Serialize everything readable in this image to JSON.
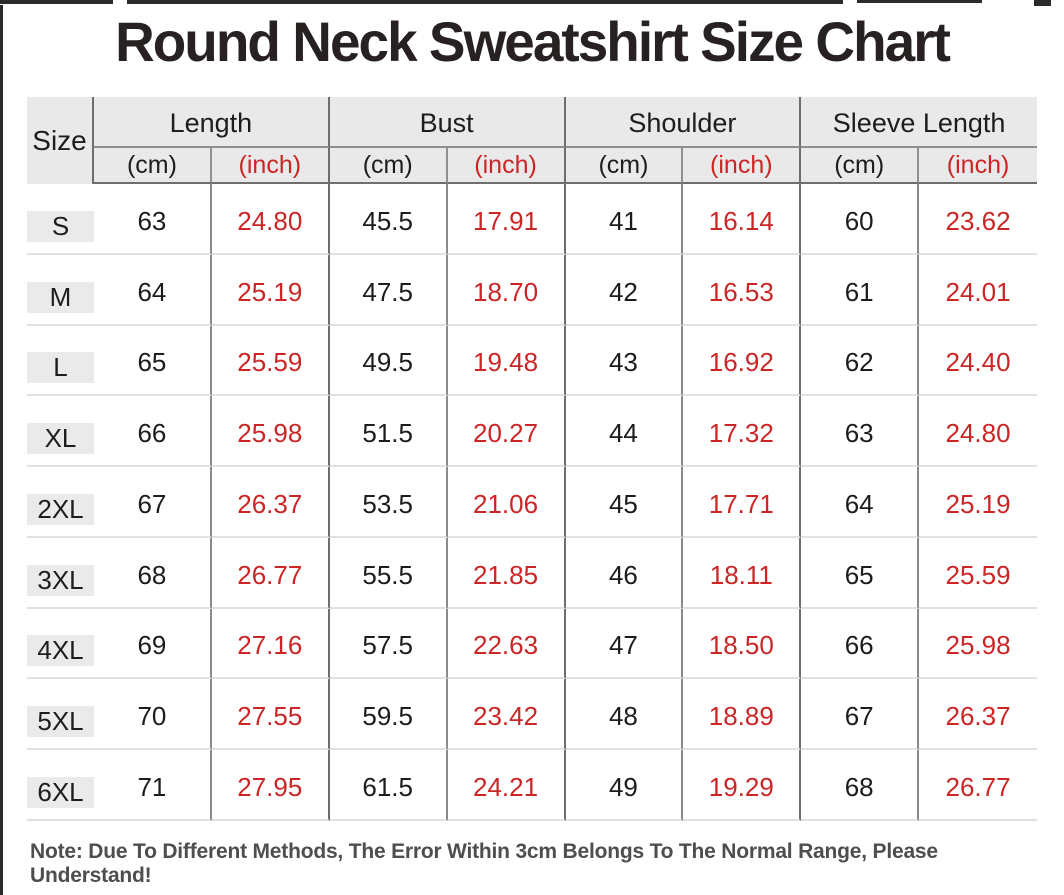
{
  "title": "Round Neck Sweatshirt Size Chart",
  "note": "Note: Due To Different Methods, The Error Within 3cm Belongs To The Normal Range, Please Understand!",
  "colors": {
    "accent_red": "#cb2525",
    "header_bg": "#e9e9e9",
    "row_divider": "#e1e1e1",
    "group_line": "#6e6e6e",
    "unit_line": "#8a8a8a",
    "title_color": "#272121",
    "note_color": "#4e4e4e"
  },
  "chart_data": {
    "type": "table",
    "title": "Round Neck Sweatshirt Size Chart",
    "column_groups": [
      "Length",
      "Bust",
      "Shoulder",
      "Sleeve Length"
    ],
    "units": [
      "(cm)",
      "(inch)"
    ],
    "size_header": "Size",
    "sizes": [
      "S",
      "M",
      "L",
      "XL",
      "2XL",
      "3XL",
      "4XL",
      "5XL",
      "6XL"
    ],
    "length_cm": [
      63,
      64,
      65,
      66,
      67,
      68,
      69,
      70,
      71
    ],
    "length_inch": [
      24.8,
      25.19,
      25.59,
      25.98,
      26.37,
      26.77,
      27.16,
      27.55,
      27.95
    ],
    "bust_cm": [
      45.5,
      47.5,
      49.5,
      51.5,
      53.5,
      55.5,
      57.5,
      59.5,
      61.5
    ],
    "bust_inch": [
      17.91,
      18.7,
      19.48,
      20.27,
      21.06,
      21.85,
      22.63,
      23.42,
      24.21
    ],
    "shoulder_cm": [
      41,
      42,
      43,
      44,
      45,
      46,
      47,
      48,
      49
    ],
    "shoulder_inch": [
      16.14,
      16.53,
      16.92,
      17.32,
      17.71,
      18.11,
      18.5,
      18.89,
      19.29
    ],
    "sleeve_cm": [
      60,
      61,
      62,
      63,
      64,
      65,
      66,
      67,
      68
    ],
    "sleeve_inch": [
      23.62,
      24.01,
      24.4,
      24.8,
      25.19,
      25.59,
      25.98,
      26.37,
      26.77
    ]
  },
  "table": {
    "size_label": "Size",
    "unit_cm": "(cm)",
    "unit_inch": "(inch)",
    "groups": [
      {
        "label": "Length"
      },
      {
        "label": "Bust"
      },
      {
        "label": "Shoulder"
      },
      {
        "label": "Sleeve Length"
      }
    ],
    "rows": [
      {
        "size": "S",
        "cells": [
          "63",
          "24.80",
          "45.5",
          "17.91",
          "41",
          "16.14",
          "60",
          "23.62"
        ]
      },
      {
        "size": "M",
        "cells": [
          "64",
          "25.19",
          "47.5",
          "18.70",
          "42",
          "16.53",
          "61",
          "24.01"
        ]
      },
      {
        "size": "L",
        "cells": [
          "65",
          "25.59",
          "49.5",
          "19.48",
          "43",
          "16.92",
          "62",
          "24.40"
        ]
      },
      {
        "size": "XL",
        "cells": [
          "66",
          "25.98",
          "51.5",
          "20.27",
          "44",
          "17.32",
          "63",
          "24.80"
        ]
      },
      {
        "size": "2XL",
        "cells": [
          "67",
          "26.37",
          "53.5",
          "21.06",
          "45",
          "17.71",
          "64",
          "25.19"
        ]
      },
      {
        "size": "3XL",
        "cells": [
          "68",
          "26.77",
          "55.5",
          "21.85",
          "46",
          "18.11",
          "65",
          "25.59"
        ]
      },
      {
        "size": "4XL",
        "cells": [
          "69",
          "27.16",
          "57.5",
          "22.63",
          "47",
          "18.50",
          "66",
          "25.98"
        ]
      },
      {
        "size": "5XL",
        "cells": [
          "70",
          "27.55",
          "59.5",
          "23.42",
          "48",
          "18.89",
          "67",
          "26.37"
        ]
      },
      {
        "size": "6XL",
        "cells": [
          "71",
          "27.95",
          "61.5",
          "24.21",
          "49",
          "19.29",
          "68",
          "26.77"
        ]
      }
    ]
  }
}
